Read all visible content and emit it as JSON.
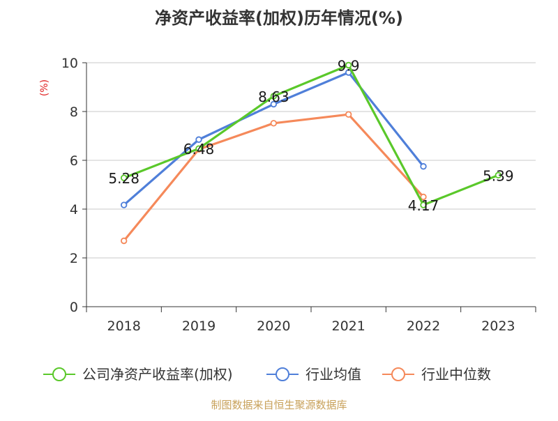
{
  "chart_data": {
    "type": "line",
    "title": "净资产收益率(加权)历年情况(%)",
    "ylabel": "(%)",
    "categories": [
      "2018",
      "2019",
      "2020",
      "2021",
      "2022",
      "2023"
    ],
    "ylim": [
      0,
      10
    ],
    "yticks": [
      0,
      2,
      4,
      6,
      8,
      10
    ],
    "grid": true,
    "legend_position": "bottom",
    "series": [
      {
        "name": "公司净资产收益率(加权)",
        "color": "#5ac82a",
        "values": [
          5.28,
          6.48,
          8.63,
          9.9,
          4.17,
          5.39
        ],
        "labels": [
          "5.28",
          "6.48",
          "8.63",
          "9.9",
          "4.17",
          "5.39"
        ]
      },
      {
        "name": "行业均值",
        "color": "#4f7fd9",
        "values": [
          4.17,
          6.85,
          8.3,
          9.6,
          5.75,
          null
        ]
      },
      {
        "name": "行业中位数",
        "color": "#f5895a",
        "values": [
          2.7,
          6.45,
          7.52,
          7.88,
          4.5,
          null
        ]
      }
    ]
  },
  "source": "制图数据来自恒生聚源数据库"
}
